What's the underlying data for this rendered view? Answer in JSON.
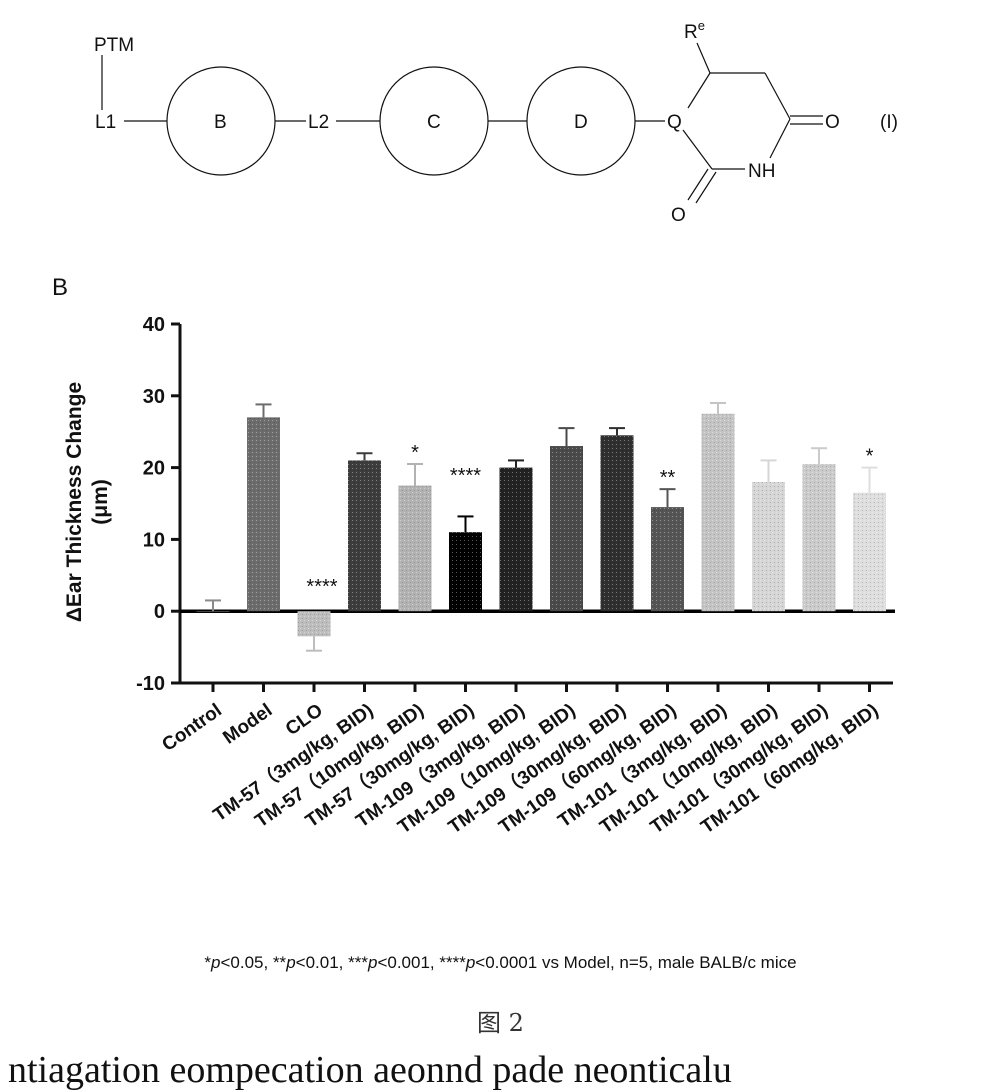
{
  "scheme": {
    "ptm": "PTM",
    "l1": "L1",
    "ring_b": "B",
    "l2": "L2",
    "ring_c": "C",
    "ring_d": "D",
    "q": "Q",
    "re_base": "R",
    "re_sup": "e",
    "nh": "NH",
    "o_right": "O",
    "o_bottom": "O",
    "formula_number": "(I)"
  },
  "chart_data": {
    "type": "bar",
    "panel_label": "B",
    "ylabel": "ΔEar Thickness Change",
    "ylabel_unit": "(μm)",
    "xlabel": "",
    "ylim": [
      -10,
      40
    ],
    "yticks": [
      -10,
      0,
      10,
      20,
      30,
      40
    ],
    "ytick_labels": [
      "-10",
      "0",
      "10",
      "20",
      "30",
      "40"
    ],
    "categories": [
      "Control",
      "Model",
      "CLO",
      "TM-57（3mg/kg, BID)",
      "TM-57（10mg/kg, BID)",
      "TM-57（30mg/kg, BID)",
      "TM-109（3mg/kg, BID)",
      "TM-109（10mg/kg, BID)",
      "TM-109（30mg/kg, BID)",
      "TM-109（60mg/kg, BID)",
      "TM-101（3mg/kg, BID)",
      "TM-101（10mg/kg, BID)",
      "TM-101（30mg/kg, BID)",
      "TM-101（60mg/kg, BID)"
    ],
    "values": [
      0,
      27,
      -3.5,
      21,
      17.5,
      11,
      20,
      23,
      24.5,
      14.5,
      27.5,
      18,
      20.5,
      16.5
    ],
    "errors": [
      1.5,
      1.8,
      2.0,
      1.0,
      3.0,
      2.2,
      1.0,
      2.5,
      1.0,
      2.5,
      1.5,
      3.0,
      2.2,
      3.5
    ],
    "significance": [
      "",
      "",
      "****",
      "",
      "*",
      "****",
      "",
      "",
      "",
      "**",
      "",
      "",
      "",
      "*"
    ],
    "bar_colors": [
      "#8a8a8a",
      "#6c6c6c",
      "#bdbdbd",
      "#3d3d3d",
      "#b2b2b2",
      "#000000",
      "#222222",
      "#4a4a4a",
      "#2f2f2f",
      "#555555",
      "#c4c4c4",
      "#d6d6d6",
      "#cbcbcb",
      "#dedede"
    ],
    "grid": false,
    "legend": "none"
  },
  "footnote": {
    "s1": "*",
    "p1": "p",
    "t1": "<0.05, **",
    "p2": "p",
    "t2": "<0.01, ***",
    "p3": "p",
    "t3": "<0.001, ****",
    "p4": "p",
    "t4": "<0.0001 vs Model, n=5, male BALB/c mice"
  },
  "figure_caption": "图 2",
  "bottom_text": "ntiagation eompecation aeonnd pade neonticalu"
}
